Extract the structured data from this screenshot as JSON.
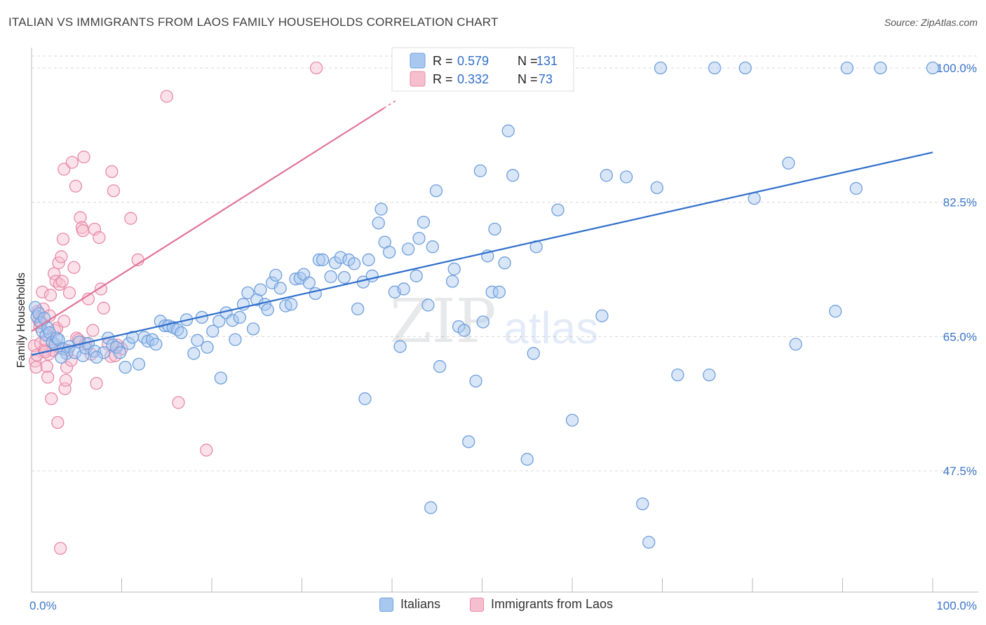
{
  "header": {
    "title": "ITALIAN VS IMMIGRANTS FROM LAOS FAMILY HOUSEHOLDS CORRELATION CHART",
    "source": "Source: ZipAtlas.com"
  },
  "watermark": {
    "zip": "ZIP",
    "atlas": "atlas"
  },
  "legend_top": {
    "rows": [
      {
        "r_label": "R =",
        "r_value": "0.579",
        "n_label": "N =",
        "n_value": "131"
      },
      {
        "r_label": "R =",
        "r_value": "0.332",
        "n_label": "N =",
        "n_value": "73"
      }
    ]
  },
  "legend_bottom": {
    "items": [
      "Italians",
      "Immigrants from Laos"
    ]
  },
  "colors": {
    "blue_fill": "#a9c8ef",
    "blue_stroke": "#6f9fdc",
    "blue_line": "#2f6ecb",
    "pink_fill": "#f6bfd0",
    "pink_stroke": "#e88aa8",
    "pink_line": "#e07399",
    "tick_text": "#3b75c9",
    "grid": "#d8d8d8"
  },
  "chart_data": {
    "type": "scatter",
    "title": "ITALIAN VS IMMIGRANTS FROM LAOS FAMILY HOUSEHOLDS CORRELATION CHART",
    "xlabel": "",
    "ylabel": "Family Households",
    "xlim": [
      0,
      100
    ],
    "ylim": [
      36.0,
      101.5
    ],
    "x_tick_labels": [
      "0.0%",
      "100.0%"
    ],
    "y_ticks": [
      47.5,
      65.0,
      82.5,
      100.0
    ],
    "y_tick_labels": [
      "47.5%",
      "65.0%",
      "82.5%",
      "100.0%"
    ],
    "grid": "horizontal dashed",
    "legend_position": "top-center",
    "series": [
      {
        "name": "Italians",
        "R": 0.579,
        "N": 131,
        "trend": {
          "x": [
            0,
            100
          ],
          "y": [
            62.6,
            89.0
          ]
        },
        "points": [
          [
            0.4,
            68.8
          ],
          [
            0.6,
            67.6
          ],
          [
            0.8,
            68.0
          ],
          [
            1.0,
            66.8
          ],
          [
            1.2,
            65.7
          ],
          [
            1.4,
            67.4
          ],
          [
            1.6,
            65.2
          ],
          [
            1.8,
            66.1
          ],
          [
            2.0,
            65.5
          ],
          [
            2.3,
            64.3
          ],
          [
            2.6,
            64.0
          ],
          [
            2.8,
            64.8
          ],
          [
            3.0,
            64.6
          ],
          [
            3.5,
            63.4
          ],
          [
            3.9,
            62.8
          ],
          [
            4.2,
            63.7
          ],
          [
            4.8,
            62.9
          ],
          [
            5.3,
            64.3
          ],
          [
            5.7,
            62.5
          ],
          [
            6.0,
            63.5
          ],
          [
            6.3,
            64.1
          ],
          [
            7.0,
            63.1
          ],
          [
            8.0,
            62.9
          ],
          [
            8.5,
            64.8
          ],
          [
            9.0,
            63.9
          ],
          [
            9.4,
            63.6
          ],
          [
            9.8,
            62.9
          ],
          [
            10.4,
            61.0
          ],
          [
            10.8,
            64.1
          ],
          [
            11.2,
            64.9
          ],
          [
            11.9,
            61.4
          ],
          [
            12.5,
            64.9
          ],
          [
            12.9,
            64.4
          ],
          [
            13.4,
            64.6
          ],
          [
            13.8,
            64.0
          ],
          [
            14.3,
            67.0
          ],
          [
            14.8,
            66.4
          ],
          [
            15.2,
            66.4
          ],
          [
            15.7,
            66.2
          ],
          [
            16.2,
            65.9
          ],
          [
            16.6,
            65.5
          ],
          [
            17.2,
            67.2
          ],
          [
            18.0,
            62.8
          ],
          [
            18.4,
            64.5
          ],
          [
            18.9,
            67.5
          ],
          [
            19.5,
            63.6
          ],
          [
            20.1,
            65.7
          ],
          [
            20.8,
            67.0
          ],
          [
            21.6,
            68.1
          ],
          [
            22.3,
            67.1
          ],
          [
            22.6,
            64.6
          ],
          [
            23.1,
            67.5
          ],
          [
            23.5,
            69.2
          ],
          [
            24.0,
            70.7
          ],
          [
            24.6,
            66.0
          ],
          [
            25.0,
            69.8
          ],
          [
            25.4,
            71.1
          ],
          [
            25.9,
            69.2
          ],
          [
            26.2,
            68.5
          ],
          [
            26.7,
            72.0
          ],
          [
            27.1,
            73.0
          ],
          [
            27.6,
            71.3
          ],
          [
            28.2,
            69.0
          ],
          [
            28.8,
            69.2
          ],
          [
            29.3,
            72.5
          ],
          [
            29.8,
            72.6
          ],
          [
            30.2,
            73.1
          ],
          [
            30.8,
            72.0
          ],
          [
            31.5,
            70.6
          ],
          [
            31.9,
            75.0
          ],
          [
            32.3,
            75.0
          ],
          [
            33.2,
            72.8
          ],
          [
            33.7,
            74.6
          ],
          [
            34.3,
            75.3
          ],
          [
            34.7,
            72.7
          ],
          [
            35.2,
            75.0
          ],
          [
            35.8,
            74.5
          ],
          [
            36.2,
            68.6
          ],
          [
            36.8,
            72.1
          ],
          [
            37.4,
            75.0
          ],
          [
            37.8,
            72.9
          ],
          [
            38.5,
            79.8
          ],
          [
            38.8,
            81.6
          ],
          [
            39.2,
            77.3
          ],
          [
            39.7,
            76.0
          ],
          [
            40.3,
            70.8
          ],
          [
            40.9,
            63.7
          ],
          [
            41.3,
            71.2
          ],
          [
            41.8,
            76.4
          ],
          [
            42.7,
            72.9
          ],
          [
            43.0,
            77.8
          ],
          [
            43.5,
            79.9
          ],
          [
            44.0,
            69.1
          ],
          [
            44.5,
            76.7
          ],
          [
            44.9,
            84.0
          ],
          [
            45.3,
            61.1
          ],
          [
            46.7,
            72.2
          ],
          [
            46.9,
            73.8
          ],
          [
            47.4,
            66.3
          ],
          [
            48.0,
            65.8
          ],
          [
            48.5,
            51.3
          ],
          [
            49.3,
            59.2
          ],
          [
            49.8,
            86.6
          ],
          [
            50.1,
            66.9
          ],
          [
            50.6,
            75.5
          ],
          [
            51.1,
            70.8
          ],
          [
            51.4,
            79.0
          ],
          [
            51.9,
            70.8
          ],
          [
            52.5,
            74.6
          ],
          [
            52.9,
            91.8
          ],
          [
            53.4,
            86.0
          ],
          [
            55.7,
            62.8
          ],
          [
            56.0,
            76.7
          ],
          [
            58.4,
            81.5
          ],
          [
            58.5,
            100.0
          ],
          [
            63.3,
            67.7
          ],
          [
            63.8,
            86.0
          ],
          [
            66.0,
            85.8
          ],
          [
            69.4,
            84.4
          ],
          [
            69.8,
            100.0
          ],
          [
            71.7,
            60.0
          ],
          [
            75.2,
            60.0
          ],
          [
            75.8,
            100.0
          ],
          [
            79.2,
            100.0
          ],
          [
            80.2,
            83.0
          ],
          [
            84.0,
            87.6
          ],
          [
            84.8,
            64.0
          ],
          [
            89.2,
            68.3
          ],
          [
            90.5,
            100.0
          ],
          [
            91.5,
            84.3
          ],
          [
            94.2,
            100.0
          ],
          [
            100.0,
            100.0
          ],
          [
            44.3,
            42.7
          ],
          [
            67.8,
            43.2
          ],
          [
            68.5,
            38.2
          ],
          [
            60.0,
            54.1
          ],
          [
            21.0,
            59.6
          ],
          [
            37.0,
            56.9
          ],
          [
            3.3,
            62.3
          ],
          [
            7.2,
            62.3
          ],
          [
            55.0,
            49.0
          ]
        ]
      },
      {
        "name": "Immigrants from Laos",
        "R": 0.332,
        "N": 73,
        "trend": {
          "x": [
            0,
            40.5
          ],
          "y": [
            65.7,
            95.8
          ]
        },
        "points": [
          [
            0.3,
            63.8
          ],
          [
            0.4,
            61.8
          ],
          [
            0.5,
            61.0
          ],
          [
            0.6,
            62.6
          ],
          [
            0.7,
            68.3
          ],
          [
            0.8,
            67.1
          ],
          [
            0.9,
            66.3
          ],
          [
            1.0,
            64.1
          ],
          [
            1.1,
            66.9
          ],
          [
            1.2,
            70.8
          ],
          [
            1.3,
            68.6
          ],
          [
            1.4,
            63.2
          ],
          [
            1.6,
            64.5
          ],
          [
            1.7,
            61.1
          ],
          [
            1.8,
            59.7
          ],
          [
            1.9,
            62.7
          ],
          [
            2.0,
            67.7
          ],
          [
            2.1,
            70.4
          ],
          [
            2.2,
            56.9
          ],
          [
            2.3,
            64.1
          ],
          [
            2.4,
            63.2
          ],
          [
            2.5,
            73.2
          ],
          [
            2.6,
            65.8
          ],
          [
            2.7,
            72.2
          ],
          [
            2.8,
            66.1
          ],
          [
            2.9,
            53.8
          ],
          [
            3.0,
            74.6
          ],
          [
            3.1,
            71.8
          ],
          [
            3.2,
            63.5
          ],
          [
            3.3,
            75.4
          ],
          [
            3.4,
            72.2
          ],
          [
            3.5,
            77.7
          ],
          [
            3.6,
            86.8
          ],
          [
            3.7,
            58.2
          ],
          [
            3.8,
            59.3
          ],
          [
            3.9,
            61.0
          ],
          [
            4.0,
            63.2
          ],
          [
            4.2,
            70.7
          ],
          [
            4.4,
            61.9
          ],
          [
            4.5,
            87.7
          ],
          [
            4.7,
            74.0
          ],
          [
            4.9,
            84.6
          ],
          [
            5.0,
            64.8
          ],
          [
            5.2,
            64.6
          ],
          [
            5.4,
            80.5
          ],
          [
            5.6,
            79.2
          ],
          [
            5.7,
            78.8
          ],
          [
            5.8,
            88.4
          ],
          [
            6.0,
            64.1
          ],
          [
            6.3,
            69.9
          ],
          [
            6.6,
            62.7
          ],
          [
            6.8,
            65.8
          ],
          [
            7.0,
            79.0
          ],
          [
            7.2,
            58.9
          ],
          [
            7.5,
            77.9
          ],
          [
            7.7,
            71.2
          ],
          [
            8.0,
            68.7
          ],
          [
            8.5,
            64.0
          ],
          [
            8.8,
            62.4
          ],
          [
            8.9,
            86.5
          ],
          [
            9.1,
            84.0
          ],
          [
            9.5,
            63.9
          ],
          [
            10.0,
            63.4
          ],
          [
            11.0,
            80.4
          ],
          [
            11.8,
            75.0
          ],
          [
            15.0,
            96.3
          ],
          [
            16.3,
            56.4
          ],
          [
            19.4,
            50.2
          ],
          [
            31.6,
            100.0
          ],
          [
            3.2,
            37.4
          ],
          [
            9.3,
            62.5
          ],
          [
            3.6,
            67.0
          ],
          [
            1.5,
            63.0
          ]
        ]
      }
    ]
  }
}
